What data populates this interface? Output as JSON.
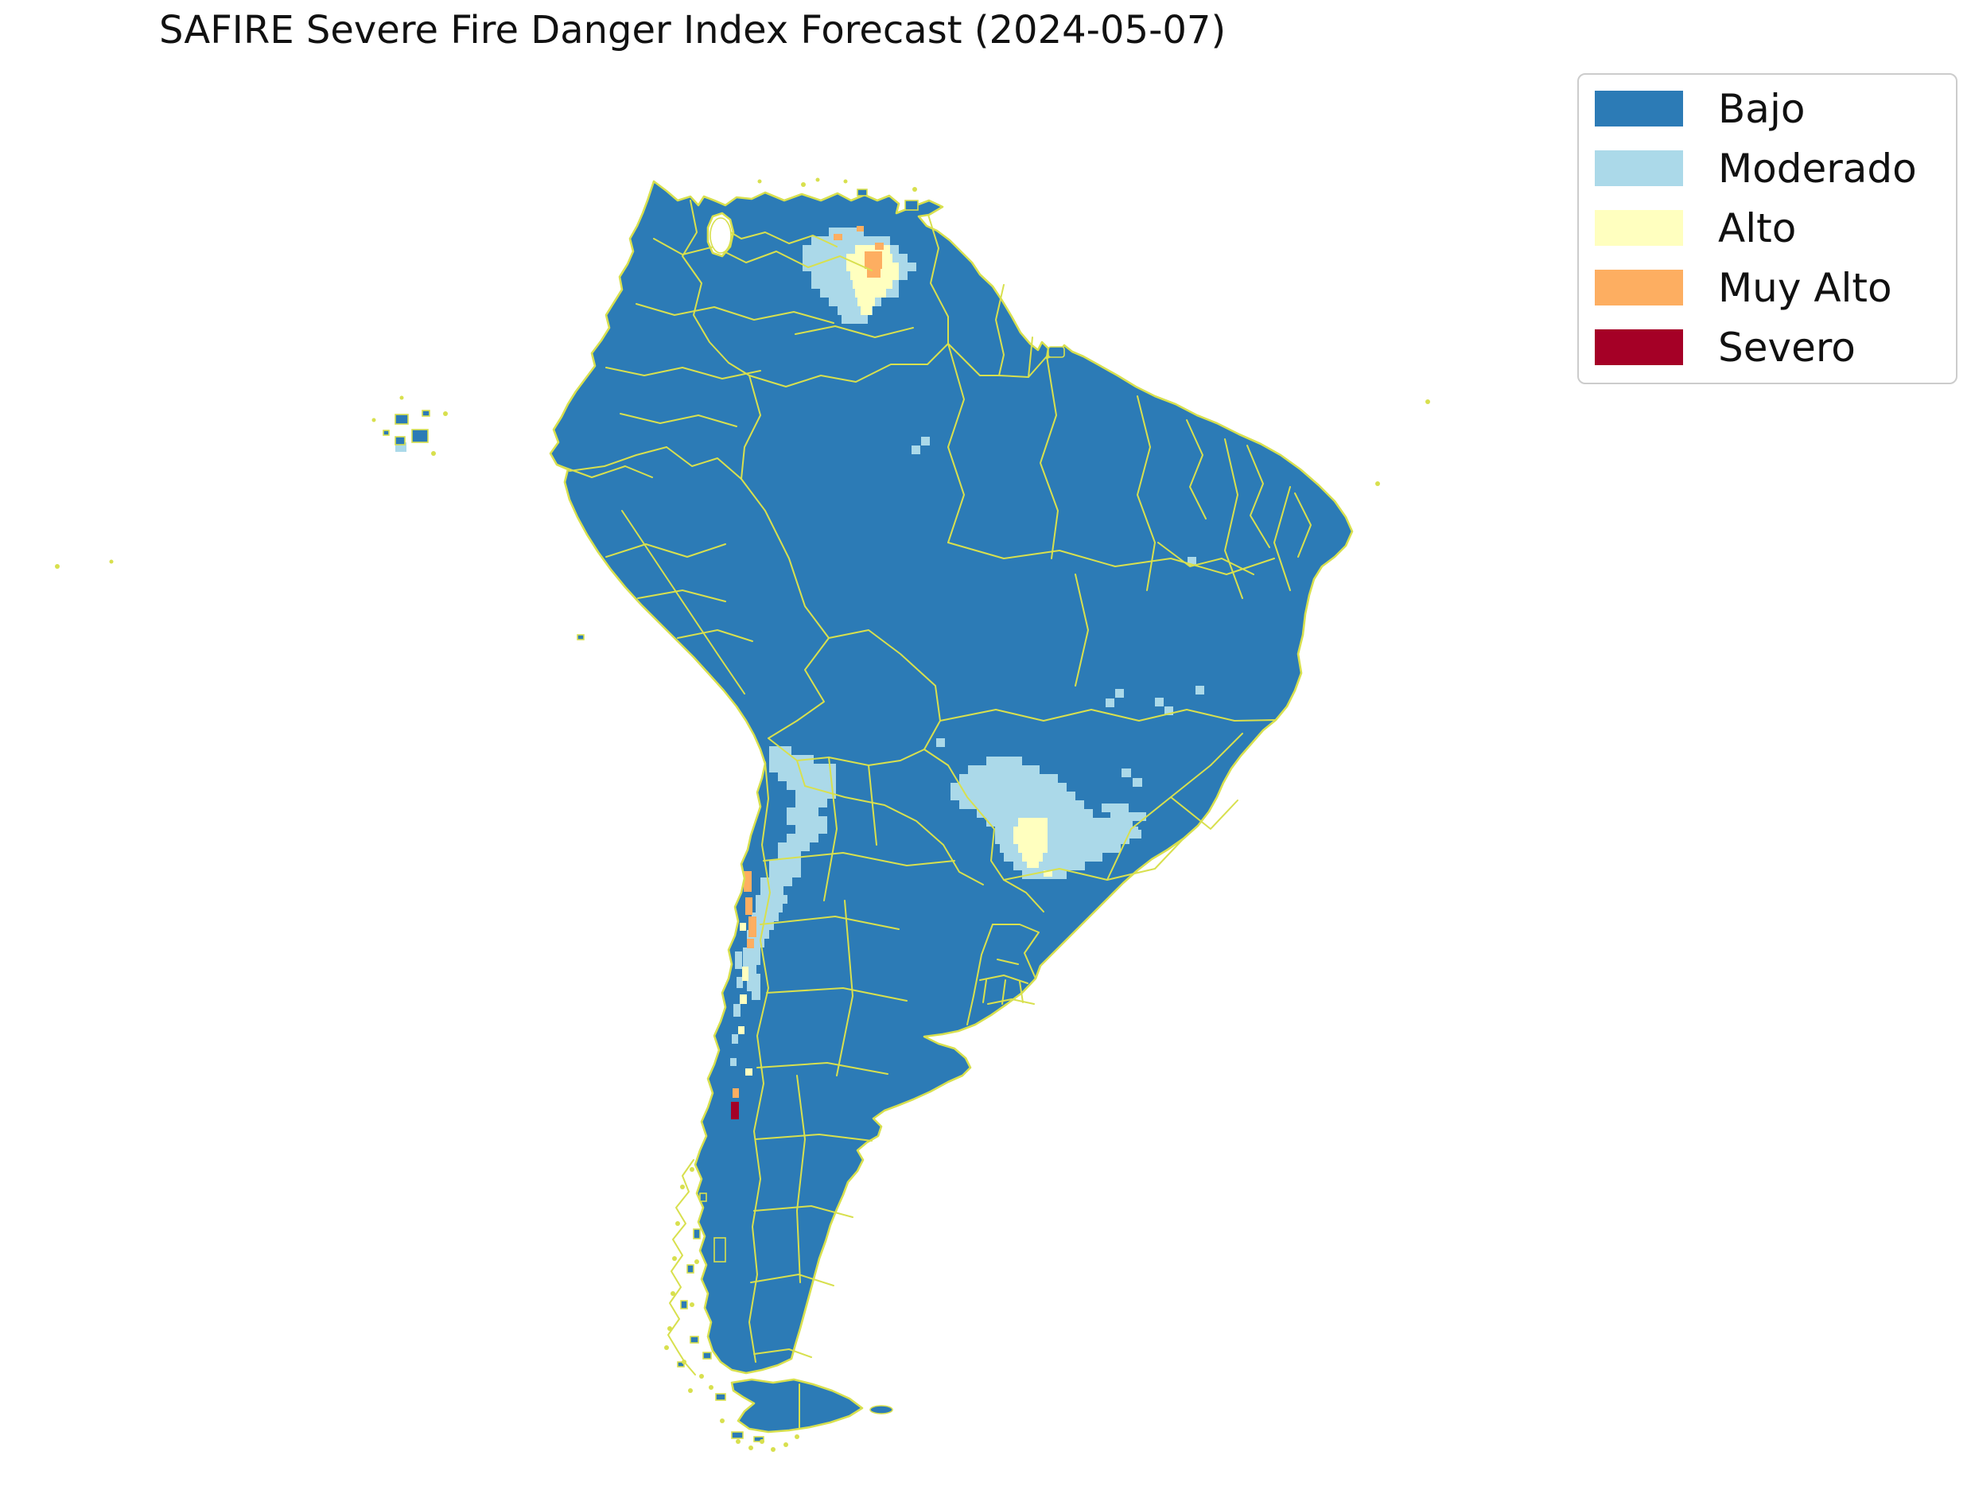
{
  "title": "SAFIRE Severe Fire Danger Index Forecast (2024-05-07)",
  "palette": {
    "bajo": "#2c7bb6",
    "moderado": "#abd9e9",
    "alto": "#ffffbf",
    "muy_alto": "#fdae61",
    "severo": "#a50026",
    "border": "#d8e04e",
    "background": "#ffffff"
  },
  "legend": {
    "items": [
      {
        "label": "Bajo",
        "color": "#2c7bb6"
      },
      {
        "label": "Moderado",
        "color": "#abd9e9"
      },
      {
        "label": "Alto",
        "color": "#ffffbf"
      },
      {
        "label": "Muy Alto",
        "color": "#fdae61"
      },
      {
        "label": "Severo",
        "color": "#a50026"
      }
    ]
  },
  "map": {
    "region": "South America",
    "overlays": {
      "moderado": [
        [
          1042,
          286,
          44,
          11
        ],
        [
          1020,
          297,
          99,
          11
        ],
        [
          1009,
          308,
          121,
          11
        ],
        [
          1009,
          319,
          132,
          11
        ],
        [
          1009,
          330,
          143,
          11
        ],
        [
          1020,
          341,
          121,
          11
        ],
        [
          1020,
          352,
          110,
          11
        ],
        [
          1031,
          363,
          99,
          11
        ],
        [
          1042,
          374,
          66,
          11
        ],
        [
          1053,
          385,
          44,
          11
        ],
        [
          1058,
          396,
          33,
          11
        ],
        [
          967,
          938,
          28,
          11
        ],
        [
          967,
          949,
          56,
          11
        ],
        [
          967,
          960,
          84,
          11
        ],
        [
          978,
          971,
          73,
          11
        ],
        [
          989,
          982,
          62,
          11
        ],
        [
          1000,
          993,
          51,
          11
        ],
        [
          1000,
          1004,
          40,
          11
        ],
        [
          989,
          1015,
          40,
          11
        ],
        [
          989,
          1026,
          51,
          11
        ],
        [
          1000,
          1037,
          40,
          11
        ],
        [
          989,
          1048,
          40,
          11
        ],
        [
          978,
          1059,
          40,
          11
        ],
        [
          978,
          1070,
          29,
          11
        ],
        [
          967,
          1081,
          40,
          11
        ],
        [
          967,
          1092,
          40,
          11
        ],
        [
          956,
          1103,
          40,
          11
        ],
        [
          956,
          1114,
          29,
          11
        ],
        [
          950,
          1125,
          40,
          11
        ],
        [
          950,
          1136,
          34,
          11
        ],
        [
          945,
          1147,
          34,
          11
        ],
        [
          945,
          1158,
          28,
          11
        ],
        [
          939,
          1169,
          28,
          11
        ],
        [
          939,
          1180,
          22,
          11
        ],
        [
          934,
          1191,
          22,
          11
        ],
        [
          934,
          1202,
          22,
          11
        ],
        [
          934,
          1213,
          17,
          11
        ],
        [
          939,
          1224,
          17,
          11
        ],
        [
          939,
          1235,
          17,
          11
        ],
        [
          945,
          1246,
          11,
          11
        ],
        [
          1240,
          951,
          45,
          11
        ],
        [
          1217,
          962,
          90,
          11
        ],
        [
          1206,
          973,
          124,
          11
        ],
        [
          1195,
          984,
          146,
          11
        ],
        [
          1195,
          995,
          157,
          11
        ],
        [
          1206,
          1006,
          157,
          11
        ],
        [
          1228,
          1017,
          146,
          11
        ],
        [
          1240,
          1028,
          180,
          11
        ],
        [
          1251,
          1039,
          180,
          11
        ],
        [
          1251,
          1050,
          169,
          11
        ],
        [
          1257,
          1061,
          152,
          11
        ],
        [
          1262,
          1072,
          124,
          11
        ],
        [
          1274,
          1083,
          90,
          11
        ],
        [
          1285,
          1094,
          56,
          11
        ],
        [
          1385,
          1010,
          34,
          11
        ],
        [
          1396,
          1021,
          45,
          11
        ],
        [
          1390,
          1032,
          34,
          11
        ],
        [
          1407,
          1043,
          28,
          11
        ],
        [
          1410,
          966,
          12,
          11
        ],
        [
          1424,
          978,
          12,
          11
        ],
        [
          924,
          1196,
          9,
          22
        ],
        [
          926,
          1228,
          8,
          14
        ],
        [
          922,
          1262,
          9,
          16
        ],
        [
          920,
          1300,
          8,
          12
        ],
        [
          918,
          1330,
          8,
          10
        ],
        [
          1158,
          549,
          11,
          11
        ],
        [
          1146,
          560,
          11,
          11
        ],
        [
          1390,
          878,
          11,
          11
        ],
        [
          1402,
          866,
          11,
          11
        ],
        [
          1452,
          877,
          11,
          11
        ],
        [
          1464,
          888,
          11,
          11
        ],
        [
          1503,
          862,
          11,
          11
        ],
        [
          1493,
          700,
          11,
          11
        ],
        [
          1177,
          928,
          11,
          11
        ],
        [
          497,
          556,
          14,
          12
        ]
      ],
      "alto": [
        [
          1075,
          308,
          44,
          11
        ],
        [
          1064,
          319,
          58,
          11
        ],
        [
          1064,
          330,
          66,
          11
        ],
        [
          1069,
          341,
          61,
          11
        ],
        [
          1072,
          352,
          50,
          11
        ],
        [
          1075,
          363,
          39,
          11
        ],
        [
          1078,
          374,
          22,
          11
        ],
        [
          1082,
          385,
          14,
          11
        ],
        [
          1280,
          1028,
          37,
          11
        ],
        [
          1274,
          1039,
          43,
          11
        ],
        [
          1274,
          1050,
          43,
          11
        ],
        [
          1280,
          1061,
          37,
          11
        ],
        [
          1285,
          1072,
          26,
          11
        ],
        [
          1291,
          1083,
          15,
          8
        ],
        [
          1312,
          1094,
          11,
          8
        ],
        [
          930,
          1160,
          8,
          10
        ],
        [
          933,
          1215,
          8,
          18
        ],
        [
          930,
          1250,
          9,
          12
        ],
        [
          928,
          1290,
          8,
          10
        ],
        [
          937,
          1343,
          9,
          9
        ]
      ],
      "muy_alto": [
        [
          1087,
          316,
          22,
          11
        ],
        [
          1087,
          327,
          22,
          11
        ],
        [
          1090,
          338,
          17,
          11
        ],
        [
          1048,
          294,
          11,
          8
        ],
        [
          1077,
          284,
          9,
          7
        ],
        [
          1100,
          305,
          11,
          9
        ],
        [
          935,
          1095,
          10,
          26
        ],
        [
          937,
          1128,
          9,
          22
        ],
        [
          941,
          1152,
          10,
          26
        ],
        [
          939,
          1180,
          9,
          12
        ],
        [
          921,
          1368,
          8,
          12
        ]
      ],
      "severo": [
        [
          919,
          1385,
          10,
          22
        ]
      ]
    }
  }
}
